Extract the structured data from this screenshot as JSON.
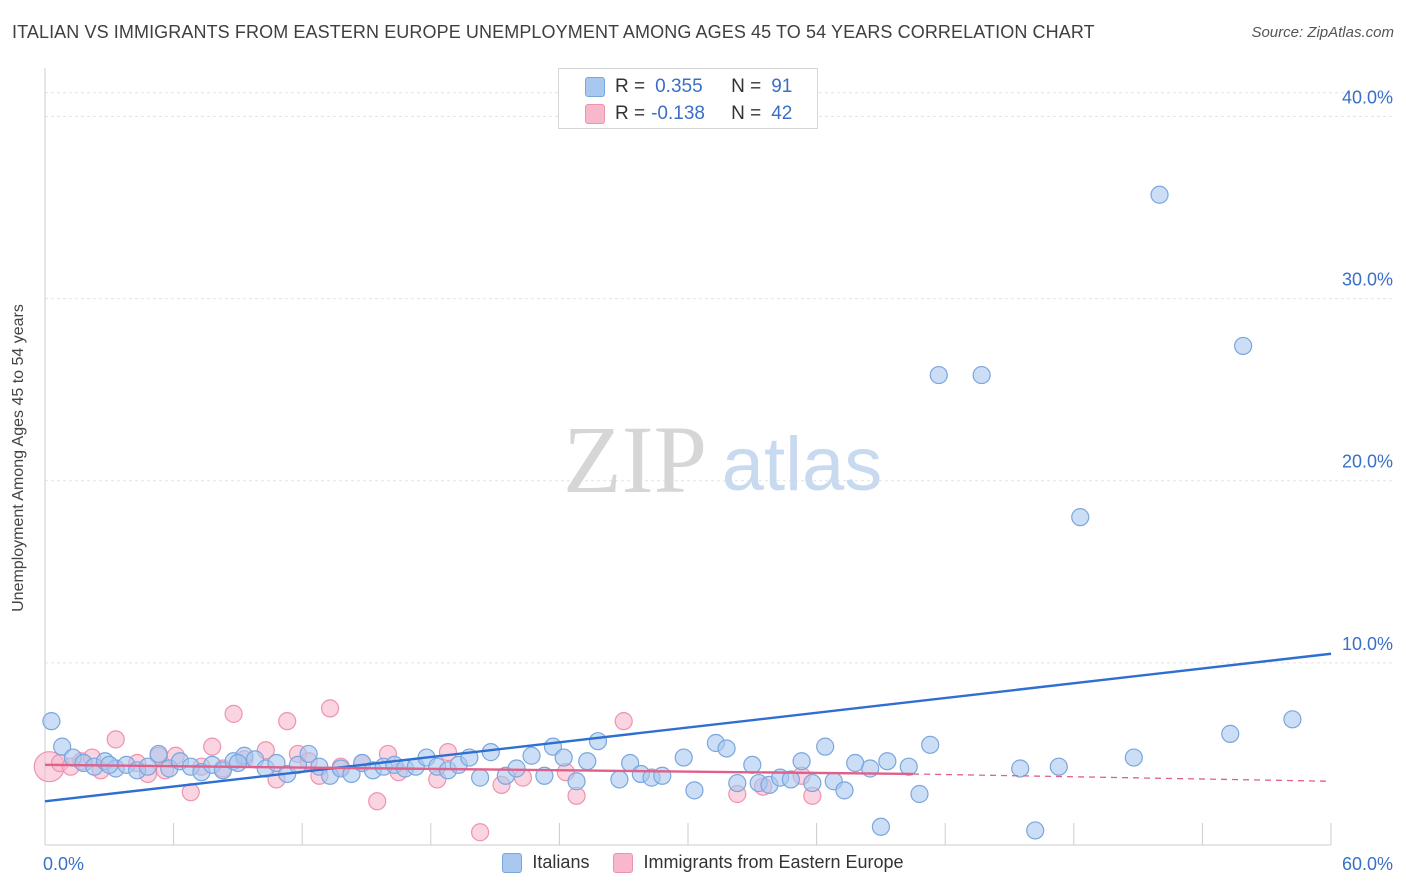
{
  "header": {
    "title": "ITALIAN VS IMMIGRANTS FROM EASTERN EUROPE UNEMPLOYMENT AMONG AGES 45 TO 54 YEARS CORRELATION CHART",
    "source": "Source: ZipAtlas.com"
  },
  "watermark": {
    "zip": "ZIP",
    "atlas": "atlas"
  },
  "stats": [
    {
      "r_label": "R =",
      "r_value": "0.355",
      "n_label": "N =",
      "n_value": "91"
    },
    {
      "r_label": "R =",
      "r_value": "-0.138",
      "n_label": "N =",
      "n_value": "42"
    }
  ],
  "legend": {
    "italians": "Italians",
    "immigrants": "Immigrants from Eastern Europe"
  },
  "colors": {
    "italians_fill": "#a9c8f0",
    "italians_stroke": "#7aa6de",
    "italians_line": "#2e6fd1",
    "immigrants_fill": "#f7b8cb",
    "immigrants_stroke": "#ee93ad",
    "immigrants_line": "#e0608a",
    "grid": "#e2e2e2",
    "axis_tick_text": "#3a6fc8"
  },
  "chart_data": {
    "type": "scatter",
    "title": "ITALIAN VS IMMIGRANTS FROM EASTERN EUROPE UNEMPLOYMENT AMONG AGES 45 TO 54 YEARS CORRELATION CHART",
    "xlabel": "",
    "ylabel": "Unemployment Among Ages 45 to 54 years",
    "xlim": [
      0,
      60
    ],
    "ylim": [
      0,
      42
    ],
    "x_tick_labels": [
      "0.0%",
      "60.0%"
    ],
    "y_ticks": [
      10,
      20,
      30,
      40
    ],
    "y_tick_labels": [
      "10.0%",
      "20.0%",
      "30.0%",
      "40.0%"
    ],
    "series": [
      {
        "name": "Italians",
        "points": [
          [
            0.3,
            6.8
          ],
          [
            0.8,
            5.4
          ],
          [
            1.3,
            4.8
          ],
          [
            1.8,
            4.5
          ],
          [
            2.3,
            4.3
          ],
          [
            2.8,
            4.6
          ],
          [
            3.3,
            4.2
          ],
          [
            3.8,
            4.4
          ],
          [
            4.3,
            4.1
          ],
          [
            4.8,
            4.3
          ],
          [
            5.3,
            5.0
          ],
          [
            5.8,
            4.2
          ],
          [
            6.3,
            4.6
          ],
          [
            6.8,
            4.3
          ],
          [
            7.3,
            4.0
          ],
          [
            7.8,
            4.4
          ],
          [
            8.3,
            4.1
          ],
          [
            8.8,
            4.6
          ],
          [
            9.3,
            4.9
          ],
          [
            9.8,
            4.7
          ],
          [
            10.3,
            4.2
          ],
          [
            10.8,
            4.5
          ],
          [
            11.3,
            3.9
          ],
          [
            11.8,
            4.4
          ],
          [
            12.3,
            5.0
          ],
          [
            12.8,
            4.3
          ],
          [
            13.3,
            3.8
          ],
          [
            13.8,
            4.2
          ],
          [
            14.3,
            3.9
          ],
          [
            14.8,
            4.5
          ],
          [
            15.3,
            4.1
          ],
          [
            15.8,
            4.3
          ],
          [
            16.3,
            4.4
          ],
          [
            16.8,
            4.2
          ],
          [
            17.3,
            4.3
          ],
          [
            17.8,
            4.8
          ],
          [
            18.3,
            4.3
          ],
          [
            18.8,
            4.1
          ],
          [
            19.3,
            4.4
          ],
          [
            19.8,
            4.8
          ],
          [
            20.3,
            3.7
          ],
          [
            20.8,
            5.1
          ],
          [
            21.5,
            3.8
          ],
          [
            22.0,
            4.2
          ],
          [
            22.7,
            4.9
          ],
          [
            23.3,
            3.8
          ],
          [
            23.7,
            5.4
          ],
          [
            24.2,
            4.8
          ],
          [
            24.8,
            3.5
          ],
          [
            25.3,
            4.6
          ],
          [
            25.8,
            5.7
          ],
          [
            26.8,
            3.6
          ],
          [
            27.3,
            4.5
          ],
          [
            27.8,
            3.9
          ],
          [
            28.3,
            3.7
          ],
          [
            28.8,
            3.8
          ],
          [
            29.8,
            4.8
          ],
          [
            30.3,
            3.0
          ],
          [
            31.3,
            5.6
          ],
          [
            31.8,
            5.3
          ],
          [
            32.3,
            3.4
          ],
          [
            33.0,
            4.4
          ],
          [
            33.3,
            3.4
          ],
          [
            33.8,
            3.3
          ],
          [
            34.3,
            3.7
          ],
          [
            34.8,
            3.6
          ],
          [
            35.3,
            4.6
          ],
          [
            35.8,
            3.4
          ],
          [
            36.4,
            5.4
          ],
          [
            36.8,
            3.5
          ],
          [
            37.3,
            3.0
          ],
          [
            37.8,
            4.5
          ],
          [
            38.5,
            4.2
          ],
          [
            39.3,
            4.6
          ],
          [
            40.3,
            4.3
          ],
          [
            40.8,
            2.8
          ],
          [
            41.3,
            5.5
          ],
          [
            39.0,
            1.0
          ],
          [
            41.7,
            25.8
          ],
          [
            43.7,
            25.8
          ],
          [
            45.5,
            4.2
          ],
          [
            46.2,
            0.8
          ],
          [
            47.3,
            4.3
          ],
          [
            48.3,
            18.0
          ],
          [
            50.8,
            4.8
          ],
          [
            52.0,
            35.7
          ],
          [
            55.3,
            6.1
          ],
          [
            55.9,
            27.4
          ],
          [
            58.2,
            6.9
          ],
          [
            3.0,
            4.4
          ],
          [
            9.0,
            4.5
          ]
        ]
      },
      {
        "name": "Immigrants from Eastern Europe",
        "points": [
          [
            0.2,
            4.3
          ],
          [
            0.7,
            4.5
          ],
          [
            1.2,
            4.3
          ],
          [
            1.7,
            4.6
          ],
          [
            2.2,
            4.8
          ],
          [
            2.6,
            4.1
          ],
          [
            3.3,
            5.8
          ],
          [
            4.3,
            4.5
          ],
          [
            4.8,
            3.9
          ],
          [
            5.3,
            4.9
          ],
          [
            5.6,
            4.1
          ],
          [
            6.1,
            4.9
          ],
          [
            6.8,
            2.9
          ],
          [
            7.3,
            4.3
          ],
          [
            7.8,
            5.4
          ],
          [
            8.3,
            4.2
          ],
          [
            8.8,
            7.2
          ],
          [
            9.3,
            4.7
          ],
          [
            10.3,
            5.2
          ],
          [
            10.8,
            3.6
          ],
          [
            11.3,
            6.8
          ],
          [
            11.8,
            5.0
          ],
          [
            12.3,
            4.6
          ],
          [
            12.8,
            3.8
          ],
          [
            13.3,
            7.5
          ],
          [
            13.8,
            4.3
          ],
          [
            14.8,
            4.5
          ],
          [
            15.5,
            2.4
          ],
          [
            16.0,
            5.0
          ],
          [
            16.5,
            4.0
          ],
          [
            18.3,
            3.6
          ],
          [
            18.8,
            5.1
          ],
          [
            20.3,
            0.7
          ],
          [
            21.3,
            3.3
          ],
          [
            22.3,
            3.7
          ],
          [
            24.3,
            4.0
          ],
          [
            24.8,
            2.7
          ],
          [
            27.0,
            6.8
          ],
          [
            32.3,
            2.8
          ],
          [
            33.5,
            3.2
          ],
          [
            35.3,
            3.8
          ],
          [
            35.8,
            2.7
          ]
        ]
      }
    ],
    "trend_lines": [
      {
        "series": "Italians",
        "x": [
          0,
          60
        ],
        "y": [
          2.4,
          10.5
        ],
        "style": "solid"
      },
      {
        "series": "Immigrants from Eastern Europe",
        "x": [
          0,
          40.5
        ],
        "y": [
          4.4,
          3.9
        ],
        "style": "solid"
      },
      {
        "series": "Immigrants from Eastern Europe",
        "x": [
          40.5,
          60
        ],
        "y": [
          3.9,
          3.5
        ],
        "style": "dashed"
      }
    ],
    "grid": true,
    "legend_position": "bottom-center"
  }
}
